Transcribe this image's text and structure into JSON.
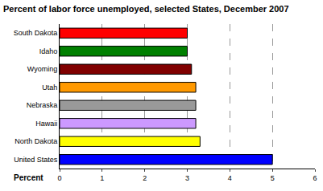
{
  "chart_data": {
    "type": "bar",
    "title": "Percent of labor force unemployed, selected States, December 2007",
    "orientation": "horizontal",
    "categories": [
      "South Dakota",
      "Idaho",
      "Wyoming",
      "Utah",
      "Nebraska",
      "Hawaii",
      "North Dakota",
      "United States"
    ],
    "values": [
      3.0,
      3.0,
      3.1,
      3.2,
      3.2,
      3.2,
      3.3,
      5.0
    ],
    "colors": [
      "#ff0000",
      "#008000",
      "#800000",
      "#ff9900",
      "#999999",
      "#cc99ff",
      "#ffff00",
      "#0000ff"
    ],
    "xlabel": "Percent",
    "xlim": [
      0,
      6
    ],
    "xticks": [
      0,
      1,
      2,
      3,
      4,
      5,
      6
    ],
    "grid": true
  }
}
